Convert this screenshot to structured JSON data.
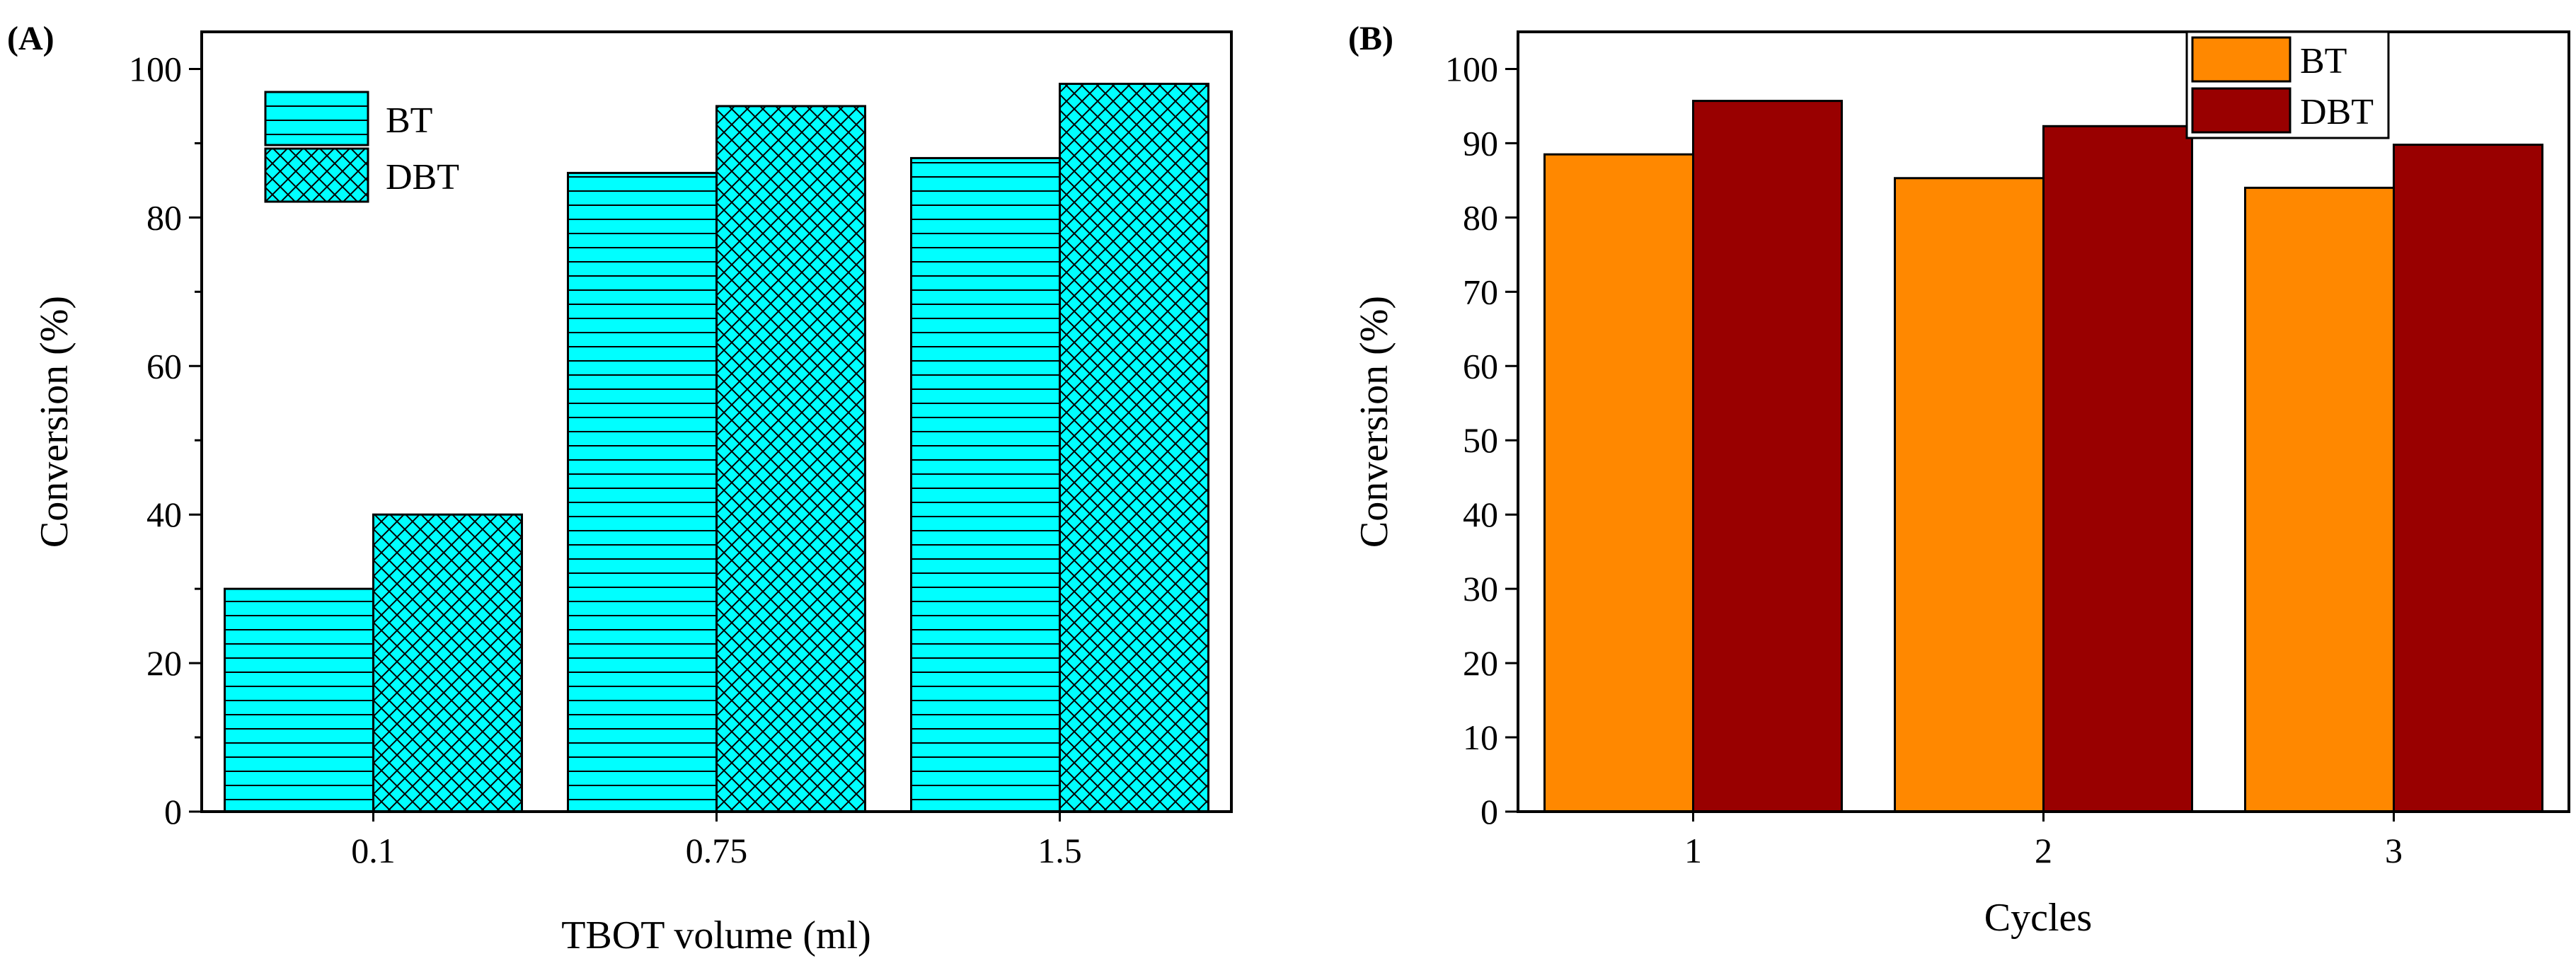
{
  "chart_data": [
    {
      "panel": "(A)",
      "type": "bar",
      "title": "",
      "xlabel": "TBOT volume (ml)",
      "ylabel": "Conversion (%)",
      "categories": [
        "0.1",
        "0.75",
        "1.5"
      ],
      "ylim": [
        0,
        105
      ],
      "yticks": [
        0,
        20,
        40,
        60,
        80,
        100
      ],
      "grid": false,
      "legend_position": "top-left",
      "series": [
        {
          "name": "BT",
          "values": [
            30,
            86,
            88
          ],
          "color": "#00FFFF",
          "pattern": "horizontal-lines"
        },
        {
          "name": "DBT",
          "values": [
            40,
            95,
            98
          ],
          "color": "#00FFFF",
          "pattern": "crosshatch"
        }
      ]
    },
    {
      "panel": "(B)",
      "type": "bar",
      "title": "",
      "xlabel": "Cycles",
      "ylabel": "Conversion (%)",
      "categories": [
        "1",
        "2",
        "3"
      ],
      "ylim": [
        0,
        105
      ],
      "yticks": [
        0,
        10,
        20,
        30,
        40,
        50,
        60,
        70,
        80,
        90,
        100
      ],
      "grid": false,
      "legend_position": "top-right",
      "series": [
        {
          "name": "BT",
          "values": [
            88.5,
            85.3,
            84
          ],
          "color": "#FF8800"
        },
        {
          "name": "DBT",
          "values": [
            95.7,
            92.3,
            89.8
          ],
          "color": "#990000"
        }
      ]
    }
  ]
}
